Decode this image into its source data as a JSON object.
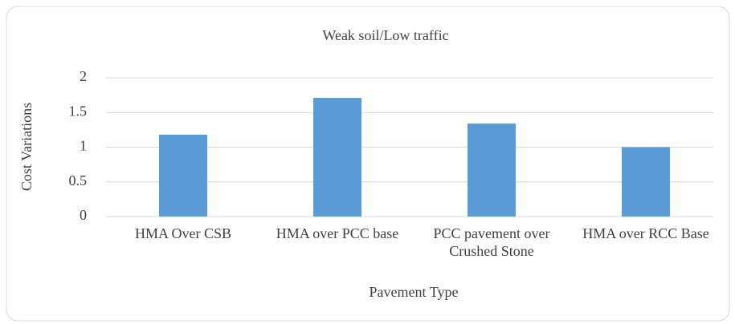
{
  "chart_data": {
    "type": "bar",
    "title": "Weak soil/Low traffic",
    "x_label": "Pavement Type",
    "y_label": "Cost Variations",
    "categories": [
      "HMA Over CSB",
      "HMA over PCC base",
      "PCC pavement over Crushed Stone",
      "HMA over RCC Base"
    ],
    "values": [
      1.18,
      1.71,
      1.34,
      1.0
    ],
    "color": "#5b9bd5",
    "ylim": [
      0,
      2
    ],
    "yticks": [
      0,
      0.5,
      1,
      1.5,
      2
    ],
    "grid": true
  }
}
